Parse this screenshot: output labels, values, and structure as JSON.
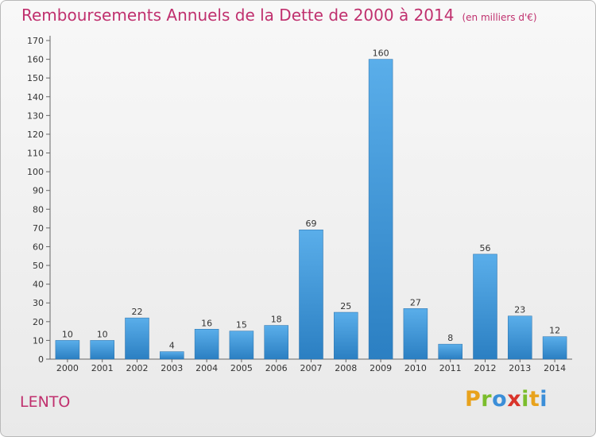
{
  "chart_data": {
    "type": "bar",
    "title": "Remboursements Annuels de la Dette de 2000 à 2014",
    "unit_note": "(en milliers d'€)",
    "categories": [
      "2000",
      "2001",
      "2002",
      "2003",
      "2004",
      "2005",
      "2006",
      "2007",
      "2008",
      "2009",
      "2010",
      "2011",
      "2012",
      "2013",
      "2014"
    ],
    "values": [
      10,
      10,
      22,
      4,
      16,
      15,
      18,
      69,
      25,
      160,
      27,
      8,
      56,
      23,
      12
    ],
    "ylim": [
      0,
      170
    ],
    "yticks": [
      0,
      10,
      20,
      30,
      40,
      50,
      60,
      70,
      80,
      90,
      100,
      110,
      120,
      130,
      140,
      150,
      160,
      170
    ],
    "grid": false,
    "bar_color": "#3a95d6"
  },
  "commune": "LENTO",
  "brand": {
    "letters": [
      "P",
      "r",
      "o",
      "x",
      "i",
      "t",
      "i"
    ],
    "colors": [
      "#e8a21c",
      "#7bbd2c",
      "#3b8ed8",
      "#d9342b",
      "#7bbd2c",
      "#e8a21c",
      "#3b8ed8"
    ]
  }
}
